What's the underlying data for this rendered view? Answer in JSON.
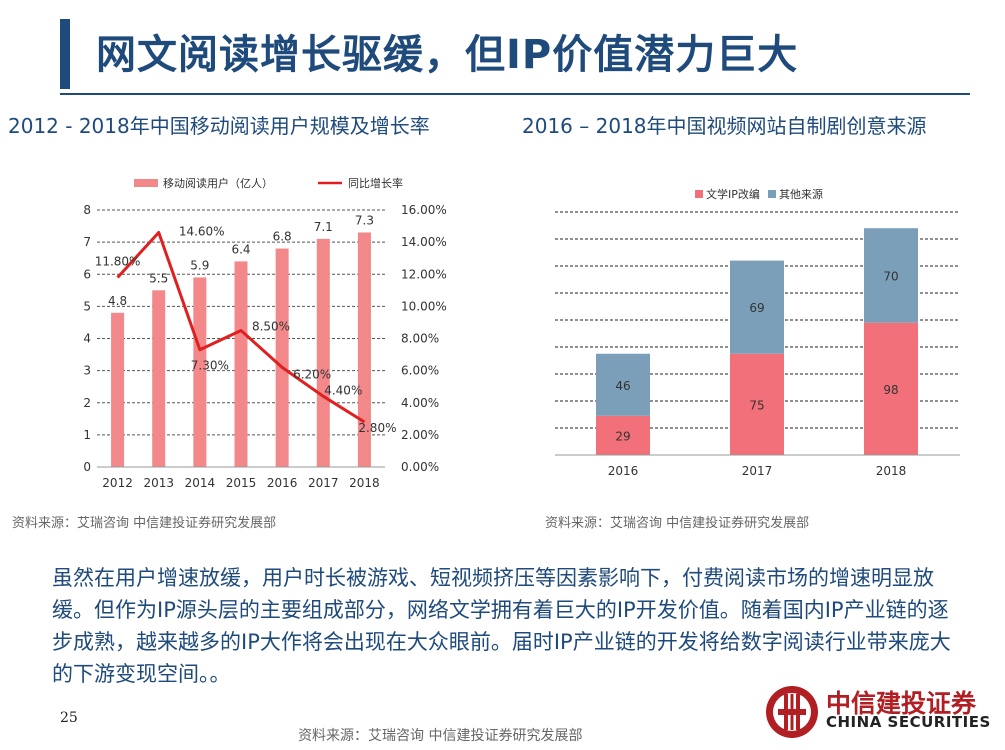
{
  "header": {
    "title": "网文阅读增长驱缓，但IP价值潜力巨大"
  },
  "left_chart": {
    "subtitle": "2012 - 2018年中国移动阅读用户规模及增长率",
    "source": "资料来源：艾瑞咨询 中信建投证券研究发展部"
  },
  "right_chart": {
    "subtitle": "2016 – 2018年中国视频网站自制剧创意来源",
    "source": "资料来源：艾瑞咨询 中信建投证券研究发展部"
  },
  "body": {
    "text": "虽然在用户增速放缓，用户时长被游戏、短视频挤压等因素影响下，付费阅读市场的增速明显放缓。但作为IP源头层的主要组成部分，网络文学拥有着巨大的IP开发价值。随着国内IP产业链的逐步成熟，越来越多的IP大作将会出现在大众眼前。届时IP产业链的开发将给数字阅读行业带来庞大的下游变现空间。。"
  },
  "footer": {
    "page_number": "25",
    "source": "资料来源：艾瑞咨询 中信建投证券研究发展部",
    "logo_cn": "中信建投证券",
    "logo_en": "CHINA SECURITIES"
  },
  "colors": {
    "title": "#1f4a7c",
    "bar_users": "#f2888a",
    "line_growth": "#e02020",
    "bar_ip": "#f2707a",
    "bar_other": "#7b9fb9",
    "brand_red": "#b11f24"
  },
  "chart_data": [
    {
      "type": "bar",
      "categories": [
        "2012",
        "2013",
        "2014",
        "2015",
        "2016",
        "2017",
        "2018"
      ],
      "series": [
        {
          "name": "移动阅读用户（亿人）",
          "type": "bar",
          "axis": "left",
          "values": [
            4.8,
            5.5,
            5.9,
            6.4,
            6.8,
            7.1,
            7.3
          ],
          "labels": [
            "4.8",
            "5.5",
            "5.9",
            "6.4",
            "6.8",
            "7.1",
            "7.3"
          ]
        },
        {
          "name": "同比增长率",
          "type": "line",
          "axis": "right",
          "values": [
            11.8,
            14.6,
            7.3,
            8.5,
            6.2,
            4.4,
            2.8
          ],
          "labels": [
            "11.80%",
            "14.60%",
            "7.30%",
            "8.50%",
            "6.20%",
            "4.40%",
            "2.80%"
          ]
        }
      ],
      "y_left": {
        "ylim": [
          0,
          8
        ],
        "ticks": [
          "0",
          "1",
          "2",
          "3",
          "4",
          "5",
          "6",
          "7",
          "8"
        ]
      },
      "y_right": {
        "ylim": [
          0,
          16
        ],
        "ticks": [
          "0.00%",
          "2.00%",
          "4.00%",
          "6.00%",
          "8.00%",
          "10.00%",
          "12.00%",
          "14.00%",
          "16.00%"
        ]
      },
      "legend": "top",
      "grid": true
    },
    {
      "type": "bar",
      "stacked": true,
      "categories": [
        "2016",
        "2017",
        "2018"
      ],
      "series": [
        {
          "name": "文学IP改编",
          "values": [
            29,
            75,
            98
          ]
        },
        {
          "name": "其他来源",
          "values": [
            46,
            69,
            70
          ]
        }
      ],
      "ylim": [
        0,
        180
      ],
      "legend": "top-left",
      "grid": true
    }
  ]
}
